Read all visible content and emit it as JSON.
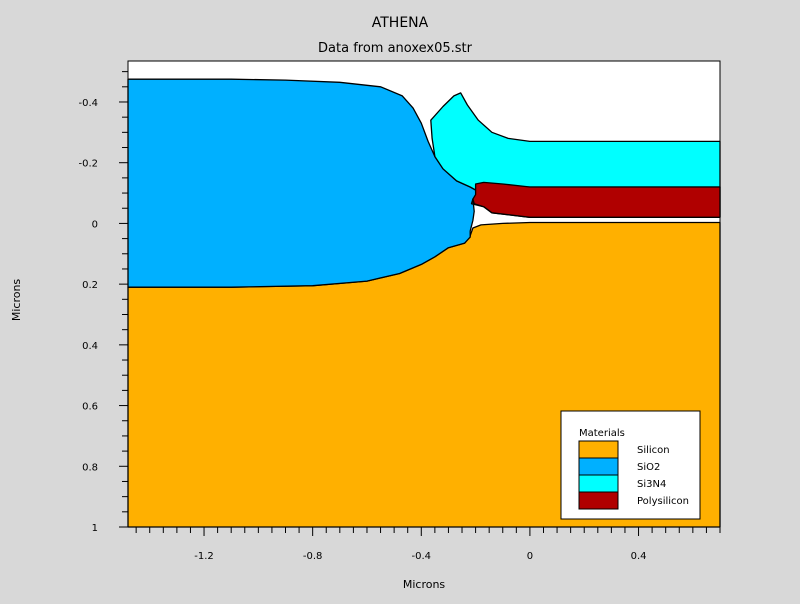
{
  "chart_data": {
    "type": "area",
    "title": "ATHENA",
    "subtitle": "Data from anoxex05.str",
    "xlabel": "Microns",
    "ylabel": "Microns",
    "xlim": [
      -1.48,
      0.7
    ],
    "ylim": [
      -0.535,
      1.0
    ],
    "y_inverted": true,
    "x_ticks": [
      -1.2,
      -0.8,
      -0.4,
      0,
      0.4
    ],
    "x_tick_labels": [
      "-1.2",
      "-0.8",
      "-0.4",
      "0",
      "0.4"
    ],
    "y_ticks": [
      -0.4,
      -0.2,
      0,
      0.2,
      0.4,
      0.6,
      0.8,
      1.0
    ],
    "y_tick_labels": [
      "-0.4",
      "-0.2",
      "0",
      "0.2",
      "0.4",
      "0.6",
      "0.8",
      "1"
    ],
    "background_color": "#ffffff",
    "legend_title": "Materials",
    "legend_position": "bottom-right",
    "materials": [
      {
        "name": "Silicon",
        "color": "#ffb000",
        "polygon": [
          [
            -1.48,
            0.21
          ],
          [
            -1.1,
            0.21
          ],
          [
            -0.8,
            0.205
          ],
          [
            -0.6,
            0.19
          ],
          [
            -0.48,
            0.165
          ],
          [
            -0.4,
            0.135
          ],
          [
            -0.35,
            0.11
          ],
          [
            -0.3,
            0.08
          ],
          [
            -0.24,
            0.065
          ],
          [
            -0.22,
            0.04
          ],
          [
            -0.21,
            0.015
          ],
          [
            -0.18,
            0.005
          ],
          [
            -0.1,
            0.0
          ],
          [
            0.0,
            -0.003
          ],
          [
            0.7,
            -0.003
          ],
          [
            0.7,
            1.0
          ],
          [
            -1.48,
            1.0
          ]
        ]
      },
      {
        "name": "SiO2",
        "color": "#00b0ff",
        "polygon": [
          [
            -1.48,
            -0.475
          ],
          [
            -1.1,
            -0.475
          ],
          [
            -0.9,
            -0.472
          ],
          [
            -0.7,
            -0.465
          ],
          [
            -0.55,
            -0.45
          ],
          [
            -0.47,
            -0.42
          ],
          [
            -0.43,
            -0.38
          ],
          [
            -0.4,
            -0.33
          ],
          [
            -0.375,
            -0.27
          ],
          [
            -0.35,
            -0.22
          ],
          [
            -0.32,
            -0.18
          ],
          [
            -0.27,
            -0.14
          ],
          [
            -0.22,
            -0.12
          ],
          [
            -0.2,
            -0.11
          ],
          [
            -0.17,
            -0.12
          ],
          [
            0.0,
            -0.12
          ],
          [
            0.7,
            -0.12
          ],
          [
            0.7,
            -0.02
          ],
          [
            0.0,
            -0.02
          ],
          [
            -0.14,
            -0.035
          ],
          [
            -0.17,
            -0.055
          ],
          [
            -0.215,
            -0.065
          ],
          [
            -0.21,
            -0.08
          ],
          [
            -0.205,
            -0.04
          ],
          [
            -0.21,
            -0.01
          ],
          [
            -0.22,
            0.025
          ],
          [
            -0.22,
            0.045
          ],
          [
            -0.24,
            0.065
          ],
          [
            -0.3,
            0.08
          ],
          [
            -0.35,
            0.11
          ],
          [
            -0.4,
            0.135
          ],
          [
            -0.48,
            0.165
          ],
          [
            -0.6,
            0.19
          ],
          [
            -0.8,
            0.205
          ],
          [
            -1.1,
            0.21
          ],
          [
            -1.48,
            0.21
          ]
        ]
      },
      {
        "name": "Si3N4",
        "color": "#00ffff",
        "polygon": [
          [
            -0.355,
            -0.35
          ],
          [
            -0.32,
            -0.385
          ],
          [
            -0.28,
            -0.42
          ],
          [
            -0.255,
            -0.43
          ],
          [
            -0.23,
            -0.39
          ],
          [
            -0.19,
            -0.34
          ],
          [
            -0.14,
            -0.3
          ],
          [
            -0.08,
            -0.28
          ],
          [
            0.0,
            -0.27
          ],
          [
            0.7,
            -0.27
          ],
          [
            0.7,
            -0.12
          ],
          [
            0.0,
            -0.12
          ],
          [
            -0.17,
            -0.12
          ],
          [
            -0.2,
            -0.11
          ],
          [
            -0.22,
            -0.12
          ],
          [
            -0.27,
            -0.14
          ],
          [
            -0.32,
            -0.18
          ],
          [
            -0.35,
            -0.22
          ],
          [
            -0.36,
            -0.28
          ],
          [
            -0.365,
            -0.34
          ]
        ]
      },
      {
        "name": "Polysilicon",
        "color": "#b00000",
        "polygon": [
          [
            -0.2,
            -0.13
          ],
          [
            -0.17,
            -0.135
          ],
          [
            -0.1,
            -0.13
          ],
          [
            0.0,
            -0.12
          ],
          [
            0.7,
            -0.12
          ],
          [
            0.7,
            -0.02
          ],
          [
            0.0,
            -0.02
          ],
          [
            -0.14,
            -0.035
          ],
          [
            -0.17,
            -0.055
          ],
          [
            -0.205,
            -0.065
          ],
          [
            -0.21,
            -0.08
          ],
          [
            -0.2,
            -0.095
          ]
        ]
      }
    ]
  }
}
